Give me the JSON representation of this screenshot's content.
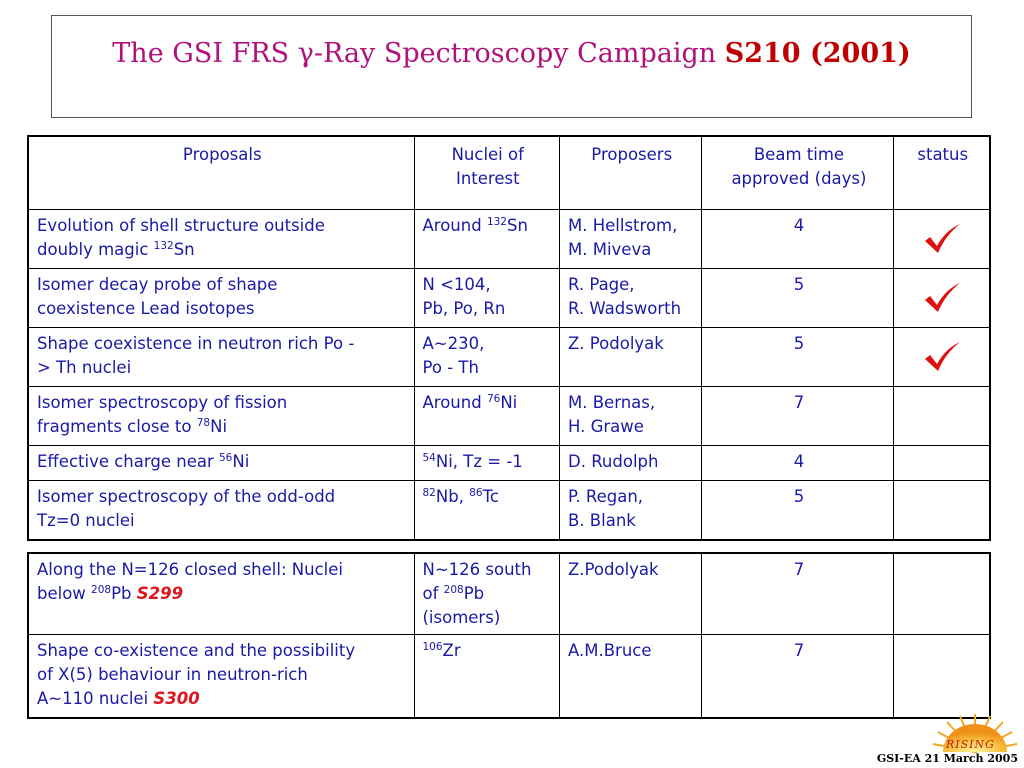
{
  "title": {
    "main": "The GSI FRS γ-Ray Spectroscopy Campaign ",
    "bold": "S210 (2001)"
  },
  "table": {
    "headers": [
      "Proposals",
      "Nuclei of",
      "Interest",
      "Proposers",
      "Beam time",
      "approved (days)",
      "status"
    ],
    "rows": [
      {
        "p1": "Evolution of shell structure outside",
        "p2a": "doubly magic ",
        "p2sup": "132",
        "p2b": "Sn",
        "n1a": "Around ",
        "n1sup": "132",
        "n1b": "Sn",
        "pr1": "M. Hellstrom,",
        "pr2": "M. Miveva",
        "days": "4",
        "status": "approved"
      },
      {
        "p1": "Isomer decay probe of shape",
        "p2": "coexistence Lead isotopes",
        "n1": "N <104,",
        "n2": "Pb, Po, Rn",
        "pr1": "R. Page,",
        "pr2": "R. Wadsworth",
        "days": "5",
        "status": "approved"
      },
      {
        "p1": "Shape coexistence in neutron rich Po -",
        "p2": "> Th nuclei",
        "n1": "A~230,",
        "n2": "Po - Th",
        "pr1": "Z. Podolyak",
        "days": "5",
        "status": "approved"
      },
      {
        "p1": "Isomer spectroscopy of fission",
        "p2a": "fragments close to ",
        "p2sup": "78",
        "p2b": "Ni",
        "n1a": "Around ",
        "n1sup": "76",
        "n1b": "Ni",
        "pr1": "M. Bernas,",
        "pr2": "H. Grawe",
        "days": "7"
      },
      {
        "p1a": "Effective charge near ",
        "p1sup": "56",
        "p1b": "Ni",
        "nsup": "54",
        "nb": "Ni,  Tz = -1",
        "pr1": "D. Rudolph",
        "days": "4"
      },
      {
        "p1": "Isomer spectroscopy of the odd-odd",
        "p2": "Tz=0 nuclei",
        "nsup1": "82",
        "nb1": "Nb, ",
        "nsup2": "86",
        "nb2": "Tc",
        "pr1": "P. Regan,",
        "pr2": "B. Blank",
        "days": "5"
      }
    ]
  },
  "extension": {
    "rows": [
      {
        "p1": "Along the N=126 closed shell: Nuclei",
        "p2a": "below ",
        "p2sup": "208",
        "p2b": "Pb ",
        "code": "S299",
        "n1": "N~126 south",
        "n2a": "of ",
        "n2sup": "208",
        "n2b": "Pb",
        "n3": "(isomers)",
        "pr": "Z.Podolyak",
        "days": "7"
      },
      {
        "p1": "Shape co-existence and the possibility",
        "p2": "of X(5) behaviour in neutron-rich",
        "p3": "A~110 nuclei ",
        "code": "S300",
        "nsup": "106",
        "nb": "Zr",
        "pr": "A.M.Bruce",
        "days": "7"
      }
    ]
  },
  "logo": {
    "text": "RISING"
  },
  "footer": {
    "text": "GSI-EA 21 March 2005"
  },
  "colors": {
    "title": "#b0127a",
    "text": "#1a1aa6",
    "code": "#e0141e",
    "check": "#e01010"
  }
}
